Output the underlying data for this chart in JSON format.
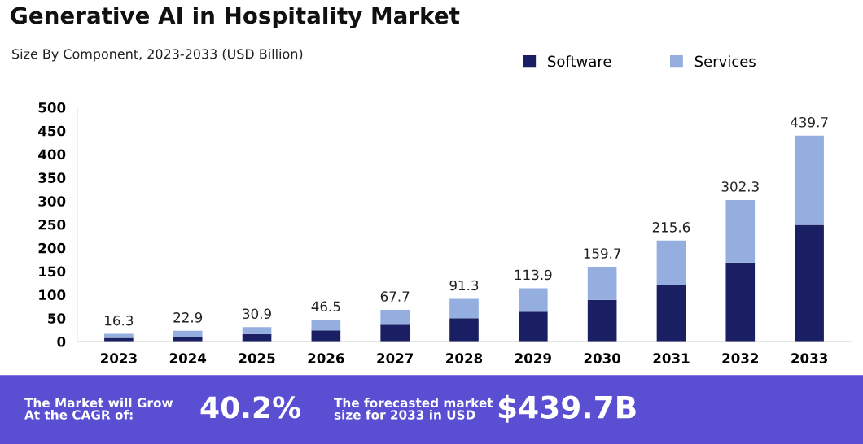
{
  "chart_data": {
    "type": "bar",
    "title": "Generative AI in Hospitality Market",
    "subtitle": "Size By Component, 2023-2033 (USD Billion)",
    "categories": [
      "2023",
      "2024",
      "2025",
      "2026",
      "2027",
      "2028",
      "2029",
      "2030",
      "2031",
      "2032",
      "2033"
    ],
    "stacked": true,
    "series": [
      {
        "name": "Software",
        "color": "#1a1f63",
        "values": [
          8,
          10,
          16,
          24,
          36,
          50,
          64,
          89,
          120,
          169,
          249
        ]
      },
      {
        "name": "Services",
        "color": "#94aee0",
        "values": [
          8.3,
          12.9,
          14.9,
          22.5,
          31.7,
          41.3,
          49.9,
          70.7,
          95.6,
          133.3,
          190.7
        ]
      }
    ],
    "totals": [
      "16.3",
      "22.9",
      "30.9",
      "46.5",
      "67.7",
      "91.3",
      "113.9",
      "159.7",
      "215.6",
      "302.3",
      "439.7"
    ],
    "ylim": [
      0,
      500
    ],
    "yticks": [
      0,
      50,
      100,
      150,
      200,
      250,
      300,
      350,
      400,
      450,
      500
    ],
    "grid": false,
    "legend": "top right",
    "annotations": [
      "The Market will Grow At the CAGR of:",
      "40.2%",
      "The forecasted market size for 2033 in USD",
      "$439.7B"
    ]
  }
}
